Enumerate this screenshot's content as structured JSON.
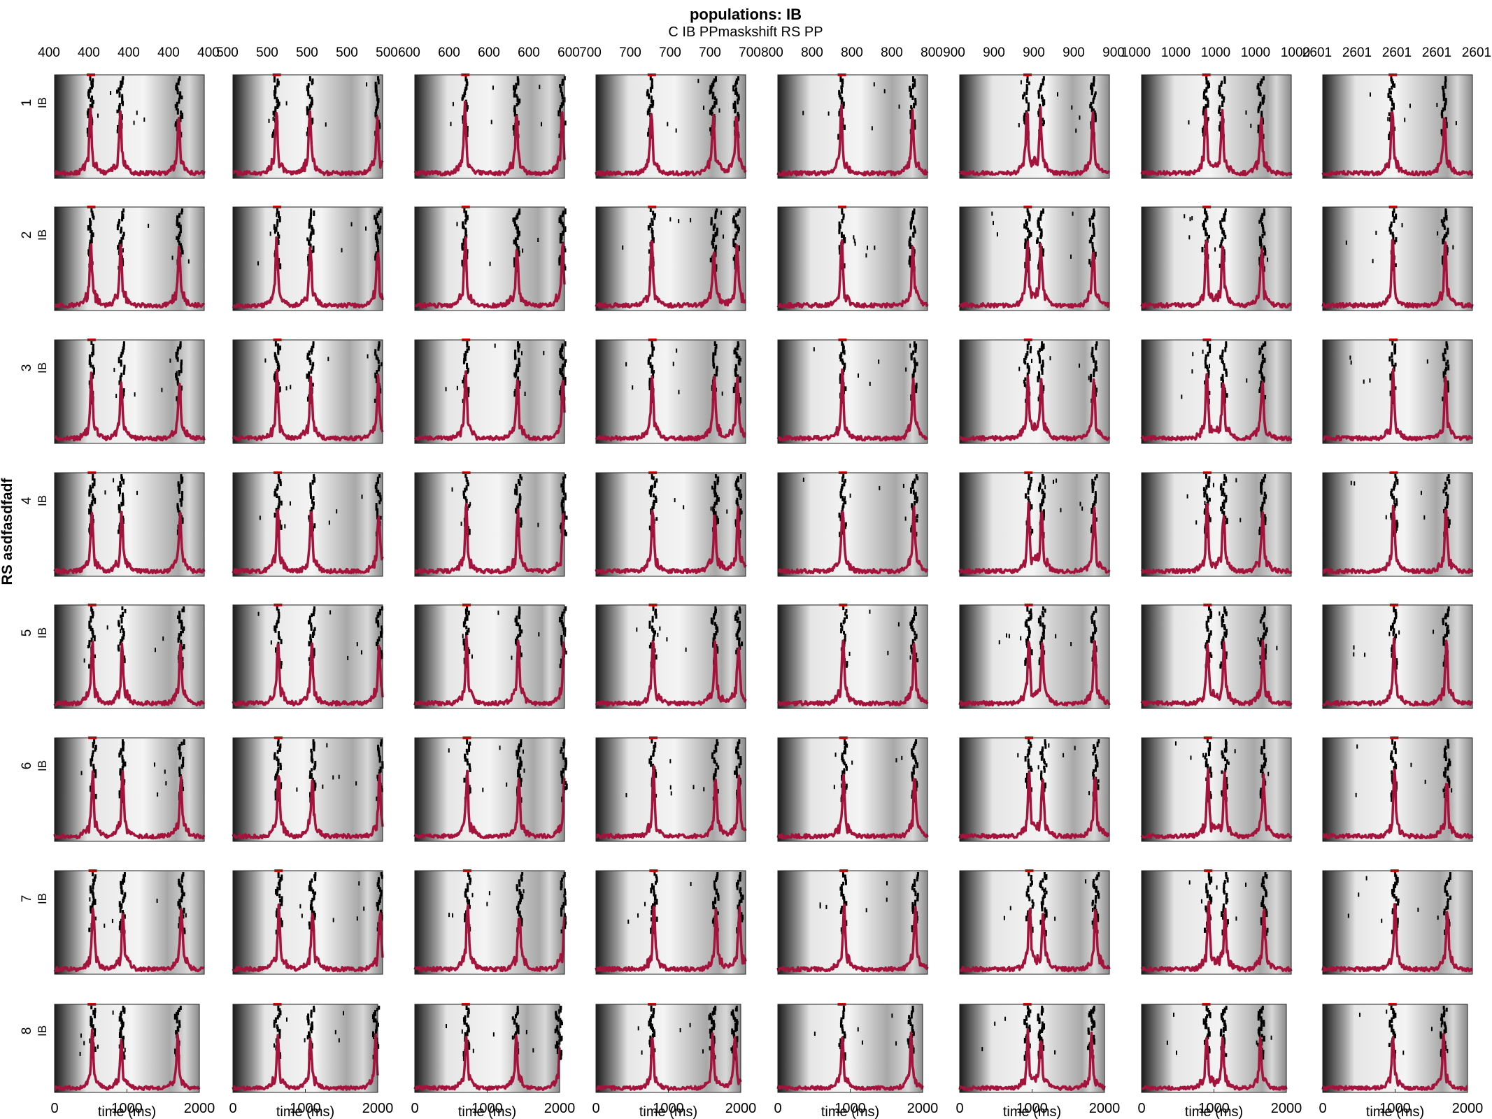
{
  "figure": {
    "title": "populations: IB",
    "column_variable_label": "C IB PPmaskshift RS PP",
    "row_variable_label": "RS asdfasdfadf",
    "panel_ylabel": "IB",
    "xlabel": "time (ms)",
    "x_tick_labels": [
      "0",
      "1000",
      "2000"
    ],
    "column_values": [
      "400",
      "500",
      "600",
      "700",
      "800",
      "900",
      "1000",
      "2601"
    ],
    "row_values": [
      "1",
      "2",
      "3",
      "4",
      "5",
      "6",
      "7",
      "8"
    ],
    "colors": {
      "rate_trace": "#a4133c",
      "stimulus_marker": "#e01010",
      "spike": "#000000"
    }
  },
  "chart_data": {
    "type": "small-multiples raster with population rate",
    "layout": {
      "rows": 8,
      "columns": 8
    },
    "xlim": [
      0,
      2000
    ],
    "x_ticks": [
      0,
      1000,
      2000
    ],
    "xlabel": "time (ms)",
    "ylabel": "IB",
    "column_header_repeats": 5,
    "columns": [
      {
        "value": "400",
        "bursts_ms": [
          500,
          900,
          1680
        ]
      },
      {
        "value": "500",
        "bursts_ms": [
          600,
          1050,
          1950
        ]
      },
      {
        "value": "600",
        "bursts_ms": [
          690,
          1380,
          1990
        ]
      },
      {
        "value": "700",
        "bursts_ms": [
          760,
          1590,
          1900
        ]
      },
      {
        "value": "800",
        "bursts_ms": [
          870,
          1820
        ]
      },
      {
        "value": "900",
        "bursts_ms": [
          920,
          1100,
          1800
        ]
      },
      {
        "value": "1000",
        "bursts_ms": [
          880,
          1100,
          1620
        ]
      },
      {
        "value": "2601",
        "bursts_ms": [
          950,
          1650
        ]
      }
    ],
    "rows": [
      "1",
      "2",
      "3",
      "4",
      "5",
      "6",
      "7",
      "8"
    ],
    "series": [
      {
        "name": "",
        "kind": "rate trace (red)"
      },
      {
        "name": "",
        "kind": "spike raster (black)"
      }
    ],
    "background": "grayscale gradient, dark at left edge, light in middle"
  }
}
